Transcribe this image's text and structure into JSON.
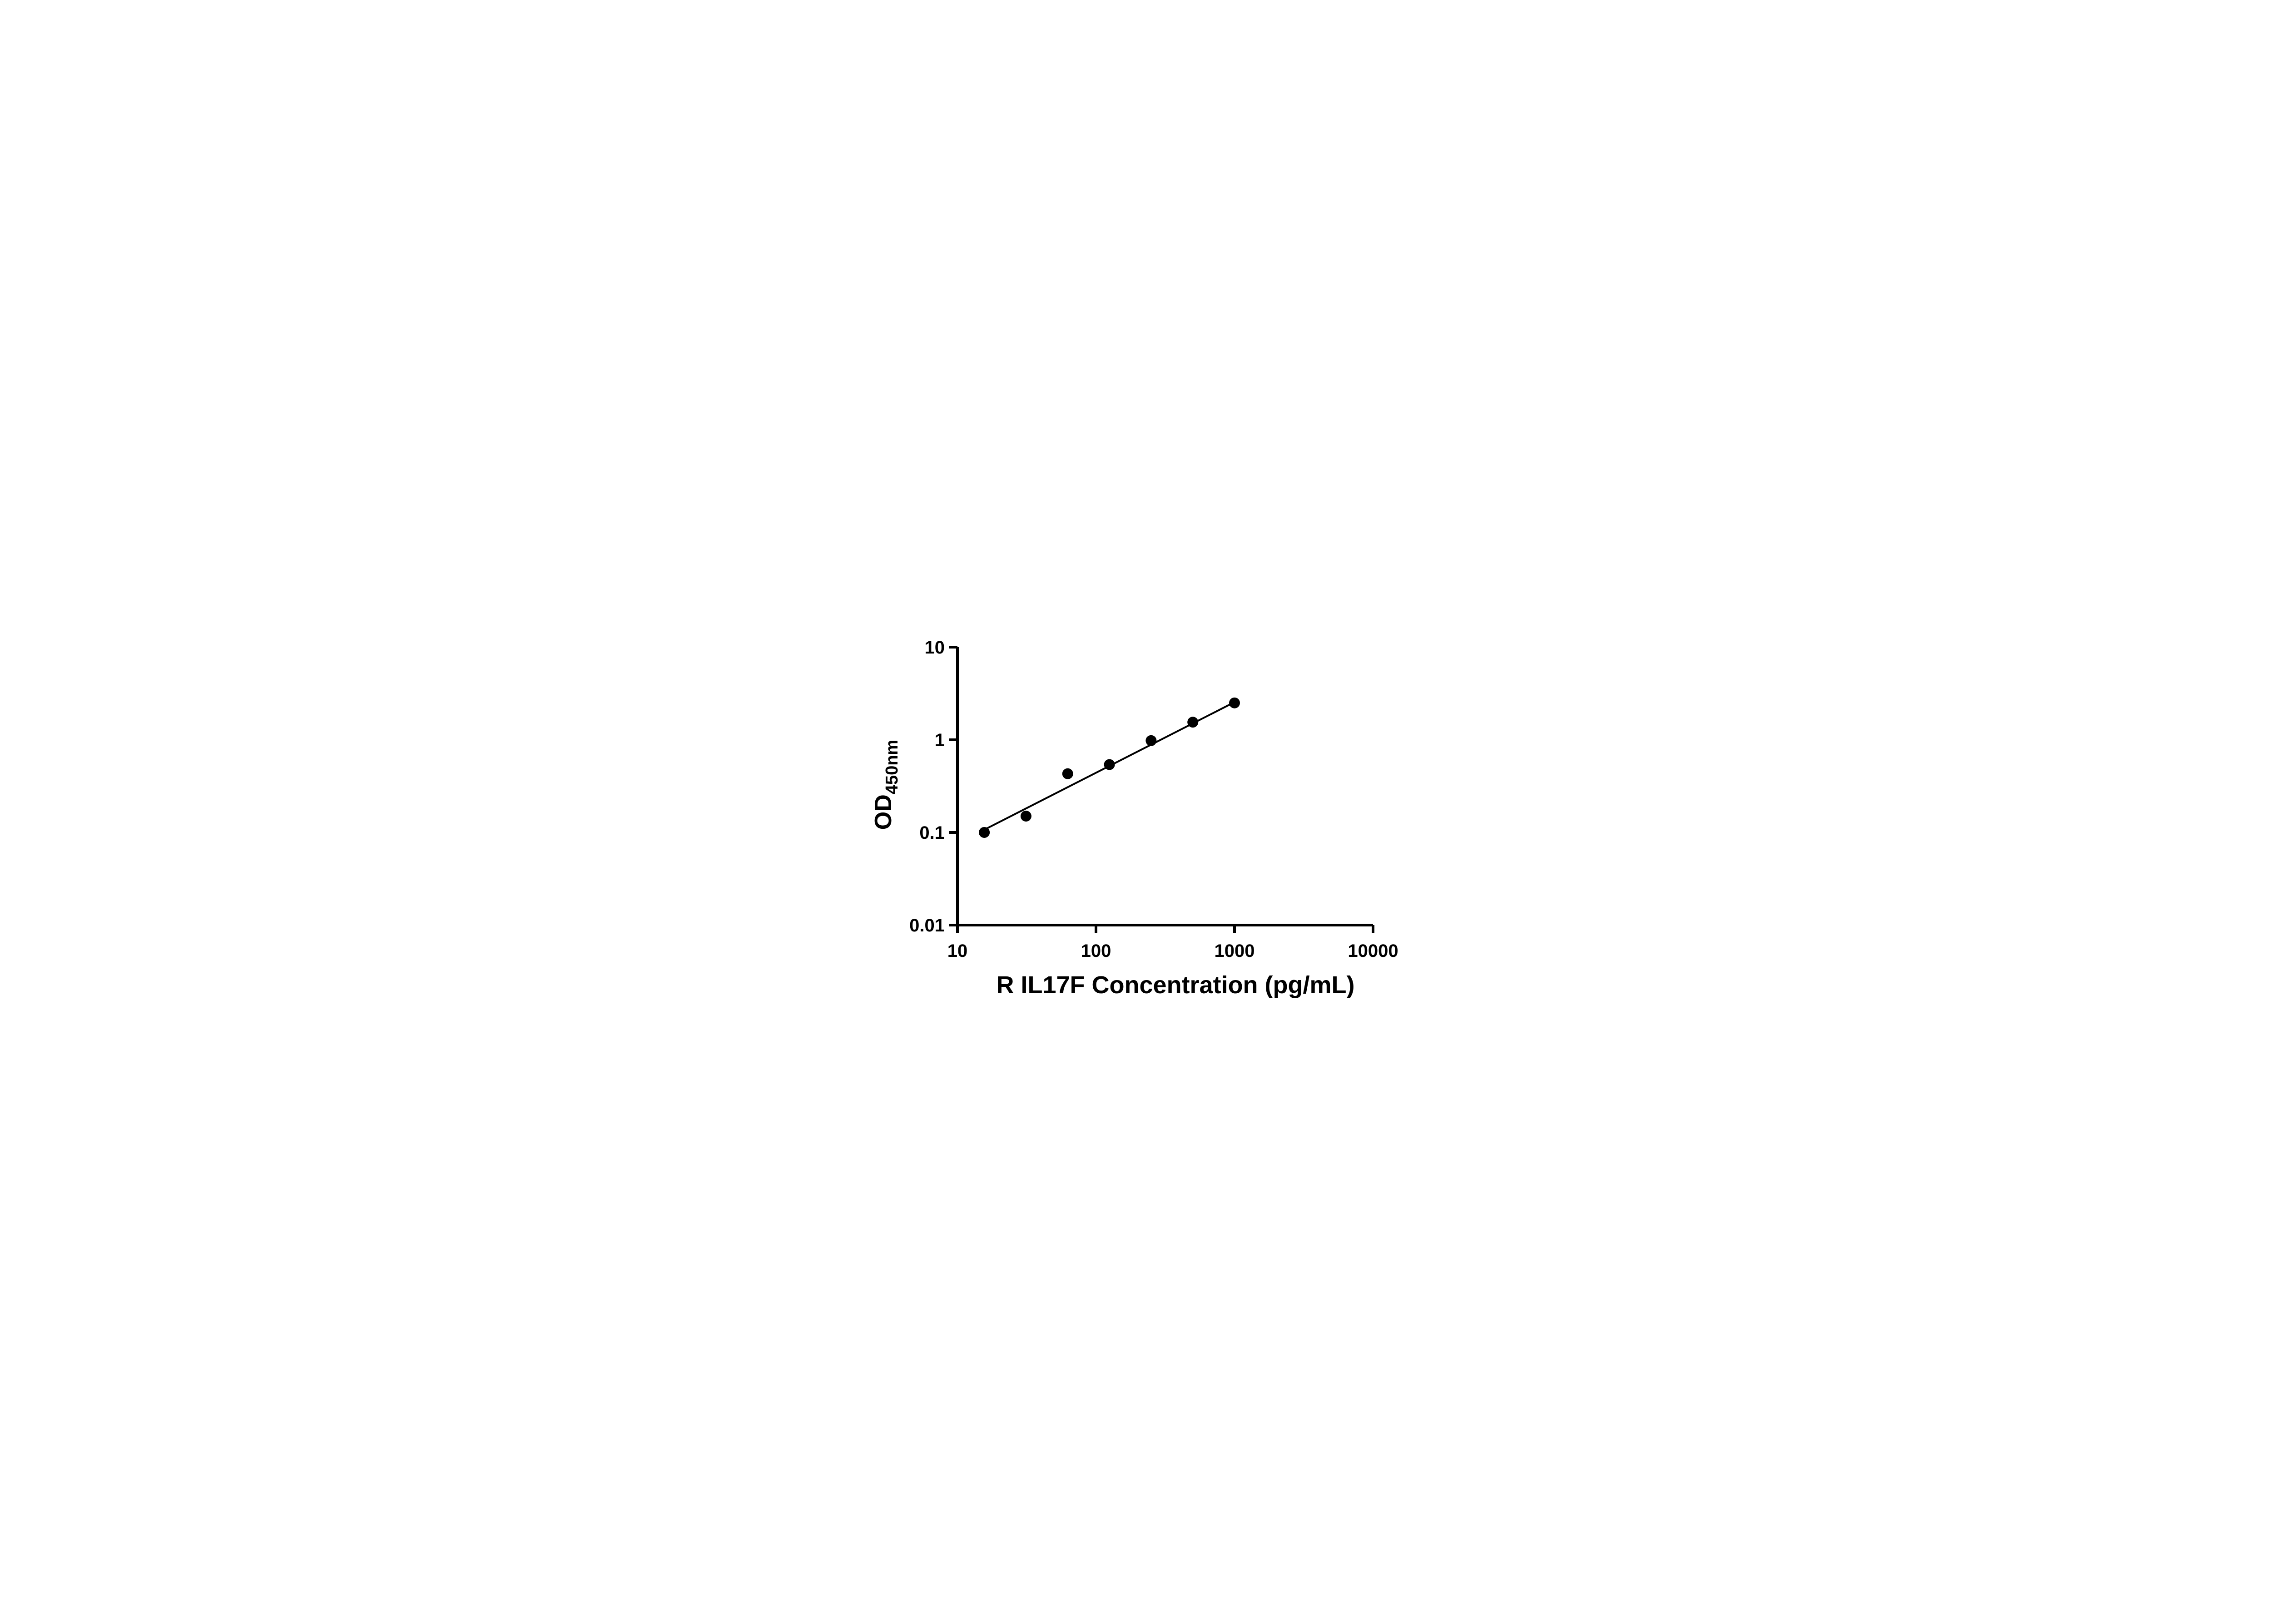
{
  "chart_data": {
    "type": "scatter",
    "title": "",
    "xlabel": "R IL17F Concentration (pg/mL)",
    "ylabel_base": "OD",
    "ylabel_sub": "450nm",
    "x_scale": "log",
    "y_scale": "log",
    "xlim": [
      10,
      10000
    ],
    "ylim": [
      0.01,
      10
    ],
    "x_ticks": [
      10,
      100,
      1000,
      10000
    ],
    "x_tick_labels": [
      "10",
      "100",
      "1000",
      "10000"
    ],
    "y_ticks": [
      0.01,
      0.1,
      1,
      10
    ],
    "y_tick_labels": [
      "0.01",
      "0.1",
      "1",
      "10"
    ],
    "grid": "off",
    "legend": "none",
    "points": [
      {
        "x": 15.625,
        "y": 0.1
      },
      {
        "x": 31.25,
        "y": 0.15
      },
      {
        "x": 62.5,
        "y": 0.43
      },
      {
        "x": 125,
        "y": 0.54
      },
      {
        "x": 250,
        "y": 0.98
      },
      {
        "x": 500,
        "y": 1.55
      },
      {
        "x": 1000,
        "y": 2.5
      }
    ],
    "trend_line": {
      "x1": 15.625,
      "y1": 0.107,
      "x2": 1000,
      "y2": 2.55
    },
    "marker_color": "#000000",
    "line_color": "#000000",
    "axis_color": "#000000"
  }
}
